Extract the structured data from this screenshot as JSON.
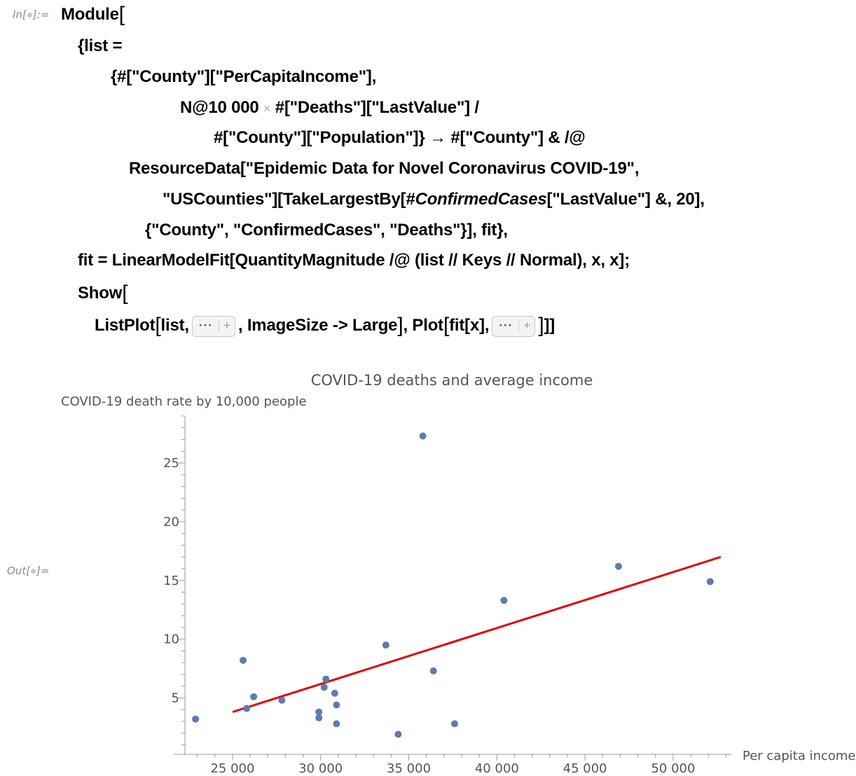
{
  "cell": {
    "in_label": "In[",
    "in_label_end": "]:=",
    "out_label": "Out[",
    "out_label_end": "]="
  },
  "code": {
    "l1": "Module",
    "l2": "{list =",
    "l3": "{#[\"County\"][\"PerCapitaIncome\"],",
    "l4a": "N@10 000",
    "l4b": "#[\"Deaths\"][\"LastValue\"] /",
    "l5": "#[\"County\"][\"Population\"]} → #[\"County\"] & /@",
    "l6": "ResourceData[\"Epidemic Data for Novel Coronavirus COVID-19\",",
    "l7a": "\"USCounties\"][TakeLargestBy[#",
    "l7b": "ConfirmedCases",
    "l7c": "[\"LastValue\"] &, 20],",
    "l8": "{\"County\", \"ConfirmedCases\", \"Deaths\"}], fit},",
    "l9": "fit = LinearModelFit[QuantityMagnitude /@ (list // Keys // Normal), x, x];",
    "l10": "Show",
    "l11a": "ListPlot",
    "l11b": "list,",
    "l11c": ", ImageSize -> Large",
    "l11d": ", Plot",
    "l11e": "fit[x],",
    "l11f": "]]",
    "ellipsis": "···",
    "plus": "+"
  },
  "chart_data": {
    "type": "scatter",
    "title": "COVID-19 deaths and average income",
    "ylabel": "COVID-19 death rate by 10,000 people",
    "xlabel": "Per capita income",
    "xlim": [
      22300,
      53300
    ],
    "ylim": [
      0.2,
      29
    ],
    "xticks": [
      25000,
      30000,
      35000,
      40000,
      45000,
      50000
    ],
    "xtick_labels": [
      "25 000",
      "30 000",
      "35 000",
      "40 000",
      "45 000",
      "50 000"
    ],
    "yticks": [
      5,
      10,
      15,
      20,
      25
    ],
    "ytick_labels": [
      "5",
      "10",
      "15",
      "20",
      "25"
    ],
    "points": [
      {
        "x": 22900,
        "y": 3.2
      },
      {
        "x": 25600,
        "y": 8.2
      },
      {
        "x": 25800,
        "y": 4.1
      },
      {
        "x": 26200,
        "y": 5.1
      },
      {
        "x": 27800,
        "y": 4.8
      },
      {
        "x": 29900,
        "y": 3.8
      },
      {
        "x": 29900,
        "y": 3.3
      },
      {
        "x": 30200,
        "y": 5.9
      },
      {
        "x": 30300,
        "y": 6.6
      },
      {
        "x": 30800,
        "y": 5.4
      },
      {
        "x": 30900,
        "y": 4.4
      },
      {
        "x": 30900,
        "y": 2.8
      },
      {
        "x": 33700,
        "y": 9.5
      },
      {
        "x": 34400,
        "y": 1.9
      },
      {
        "x": 35800,
        "y": 27.3
      },
      {
        "x": 36400,
        "y": 7.3
      },
      {
        "x": 37600,
        "y": 2.8
      },
      {
        "x": 40400,
        "y": 13.3
      },
      {
        "x": 46900,
        "y": 16.2
      },
      {
        "x": 52100,
        "y": 14.9
      }
    ],
    "fit_line": {
      "x": [
        25000,
        52700
      ],
      "y": [
        3.8,
        17.0
      ],
      "color": "#e00000"
    },
    "point_color": "#5e7bb0",
    "grid": false
  }
}
